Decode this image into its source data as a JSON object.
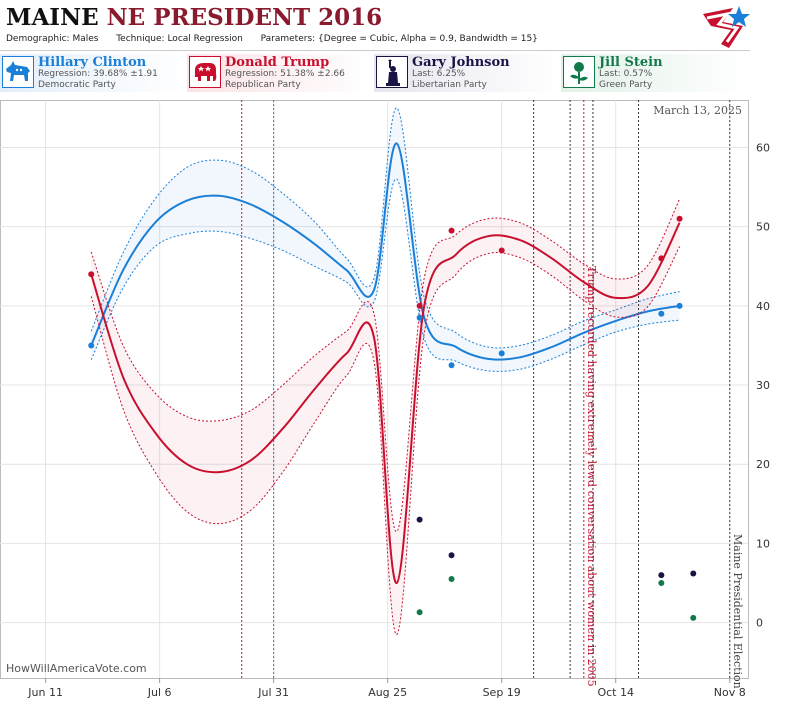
{
  "header": {
    "state": "MAINE",
    "title_rest": "NE PRESIDENT 2016",
    "demographic_label": "Demographic:",
    "demographic": "Males",
    "technique_label": "Technique:",
    "technique": "Local Regression",
    "parameters_label": "Parameters:",
    "parameters": "{Degree = Cubic, Alpha = 0.9, Bandwidth = 15}"
  },
  "candidates": [
    {
      "name": "Hillary Clinton",
      "stat": "Regression: 39.68% ±1.91",
      "party": "Democratic Party",
      "color": "#1a7fd6",
      "icon": "donkey-icon"
    },
    {
      "name": "Donald Trump",
      "stat": "Regression: 51.38% ±2.66",
      "party": "Republican Party",
      "color": "#c8102e",
      "icon": "elephant-icon"
    },
    {
      "name": "Gary Johnson",
      "stat": "Last: 6.25%",
      "party": "Libertarian Party",
      "color": "#1a1446",
      "icon": "liberty-icon"
    },
    {
      "name": "Jill Stein",
      "stat": "Last: 0.57%",
      "party": "Green Party",
      "color": "#117a4a",
      "icon": "rose-icon"
    }
  ],
  "chart_data": {
    "type": "line",
    "date_label": "March 13, 2025",
    "watermark": "HowWillAmericaVote.com",
    "x_ticks": [
      "Jun 11",
      "Jul 6",
      "Jul 31",
      "Aug 25",
      "Sep 19",
      "Oct 14",
      "Nov 8"
    ],
    "x_tick_dates": [
      "2016-06-11",
      "2016-07-06",
      "2016-07-31",
      "2016-08-25",
      "2016-09-19",
      "2016-10-14",
      "2016-11-08"
    ],
    "y_ticks": [
      0,
      10,
      20,
      30,
      40,
      50,
      60
    ],
    "ylim": [
      -7,
      66
    ],
    "xlim": [
      "2016-06-01",
      "2016-11-12"
    ],
    "annotations": [
      {
        "date": "2016-10-07",
        "text": "Trump recorded having extremely lewd conversation about women in 2005",
        "color": "#c8102e"
      },
      {
        "date": "2016-11-08",
        "text": "Maine Presidential Election",
        "color": "#444444"
      }
    ],
    "event_lines": [
      {
        "date": "2016-07-24",
        "color": "#c8102e"
      },
      {
        "date": "2016-07-31",
        "color": "#1a7fd6"
      },
      {
        "date": "2016-09-26",
        "color": "#333333"
      },
      {
        "date": "2016-10-04",
        "color": "#333333"
      },
      {
        "date": "2016-10-09",
        "color": "#333333"
      },
      {
        "date": "2016-10-19",
        "color": "#333333"
      }
    ],
    "series": [
      {
        "name": "Hillary Clinton",
        "color": "#1a7fd6",
        "fit_x": [
          "2016-06-21",
          "2016-06-28",
          "2016-07-05",
          "2016-07-12",
          "2016-07-19",
          "2016-07-26",
          "2016-08-02",
          "2016-08-09",
          "2016-08-16",
          "2016-08-22",
          "2016-08-27",
          "2016-09-02",
          "2016-09-09",
          "2016-09-16",
          "2016-09-23",
          "2016-09-30",
          "2016-10-07",
          "2016-10-14",
          "2016-10-21",
          "2016-10-28"
        ],
        "fit_y": [
          35,
          44.5,
          50.5,
          53.3,
          53.9,
          52.8,
          50.6,
          47.8,
          44.5,
          42,
          60.5,
          38.5,
          34.8,
          33.3,
          33.5,
          34.8,
          36.6,
          38.1,
          39.3,
          40
        ],
        "fit_err": [
          1.8,
          2.2,
          3,
          4.2,
          4.5,
          4.3,
          3.6,
          2.8,
          1.5,
          1.5,
          4.5,
          2.6,
          1.8,
          1.5,
          1.5,
          1.5,
          1.5,
          1.4,
          1.6,
          1.8
        ],
        "points_x": [
          "2016-06-21",
          "2016-09-01",
          "2016-09-08",
          "2016-09-19",
          "2016-10-24",
          "2016-10-28"
        ],
        "points_y": [
          35,
          38.5,
          32.5,
          34,
          39,
          40
        ]
      },
      {
        "name": "Donald Trump",
        "color": "#c8102e",
        "fit_x": [
          "2016-06-21",
          "2016-06-28",
          "2016-07-05",
          "2016-07-12",
          "2016-07-19",
          "2016-07-26",
          "2016-08-02",
          "2016-08-09",
          "2016-08-16",
          "2016-08-22",
          "2016-08-27",
          "2016-09-02",
          "2016-09-09",
          "2016-09-16",
          "2016-09-23",
          "2016-09-30",
          "2016-10-07",
          "2016-10-14",
          "2016-10-21",
          "2016-10-28"
        ],
        "fit_y": [
          44,
          31,
          24,
          20,
          19,
          20.5,
          24.5,
          29.5,
          34,
          36,
          5,
          40,
          46.5,
          48.8,
          48.3,
          46,
          43,
          41,
          42.5,
          50.5
        ],
        "fit_err": [
          2.8,
          4,
          5,
          6,
          6.5,
          6.3,
          5.5,
          4.2,
          2.8,
          3,
          6.5,
          3.5,
          2.5,
          2.2,
          2.2,
          2.2,
          2.3,
          2.4,
          2.6,
          3
        ],
        "points_x": [
          "2016-06-21",
          "2016-09-01",
          "2016-09-08",
          "2016-09-19",
          "2016-10-24",
          "2016-10-28"
        ],
        "points_y": [
          44,
          40,
          49.5,
          47,
          46,
          51
        ]
      },
      {
        "name": "Gary Johnson",
        "color": "#1a1446",
        "points_x": [
          "2016-09-01",
          "2016-09-08",
          "2016-10-24",
          "2016-10-31"
        ],
        "points_y": [
          13,
          8.5,
          6,
          6.2
        ]
      },
      {
        "name": "Jill Stein",
        "color": "#117a4a",
        "points_x": [
          "2016-09-01",
          "2016-09-08",
          "2016-10-24",
          "2016-10-31"
        ],
        "points_y": [
          1.3,
          5.5,
          5,
          0.6
        ]
      }
    ]
  }
}
